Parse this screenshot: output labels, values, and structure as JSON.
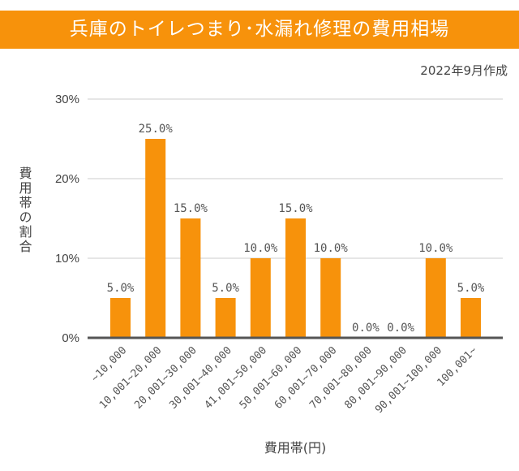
{
  "header": {
    "title": "兵庫のトイレつまり･水漏れ修理の費用相場",
    "date_note": "2022年9月作成"
  },
  "colors": {
    "bar": "#f7920b",
    "banner": "#f7920b",
    "axis": "#555555",
    "grid": "#cccccc"
  },
  "chart_data": {
    "type": "bar",
    "title": "兵庫のトイレつまり･水漏れ修理の費用相場",
    "xlabel": "費用帯(円)",
    "ylabel": "費用帯の割合",
    "ylim": [
      0,
      30
    ],
    "yticks": [
      "0%",
      "10%",
      "20%",
      "30%"
    ],
    "grid": true,
    "categories": [
      "~10,000",
      "10,001~20,000",
      "20,001~30,000",
      "30,001~40,000",
      "41,001~50,000",
      "50,001~60,000",
      "60,001~70,000",
      "70,001~80,000",
      "80,001~90,000",
      "90,001~100,000",
      "100,001~"
    ],
    "values": [
      5,
      25,
      15,
      5,
      10,
      15,
      10,
      0,
      0,
      10,
      5
    ],
    "data_labels": [
      "5.0%",
      "25.0%",
      "15.0%",
      "5.0%",
      "10.0%",
      "15.0%",
      "10.0%",
      "0.0%",
      "0.0%",
      "10.0%",
      "5.0%"
    ]
  }
}
